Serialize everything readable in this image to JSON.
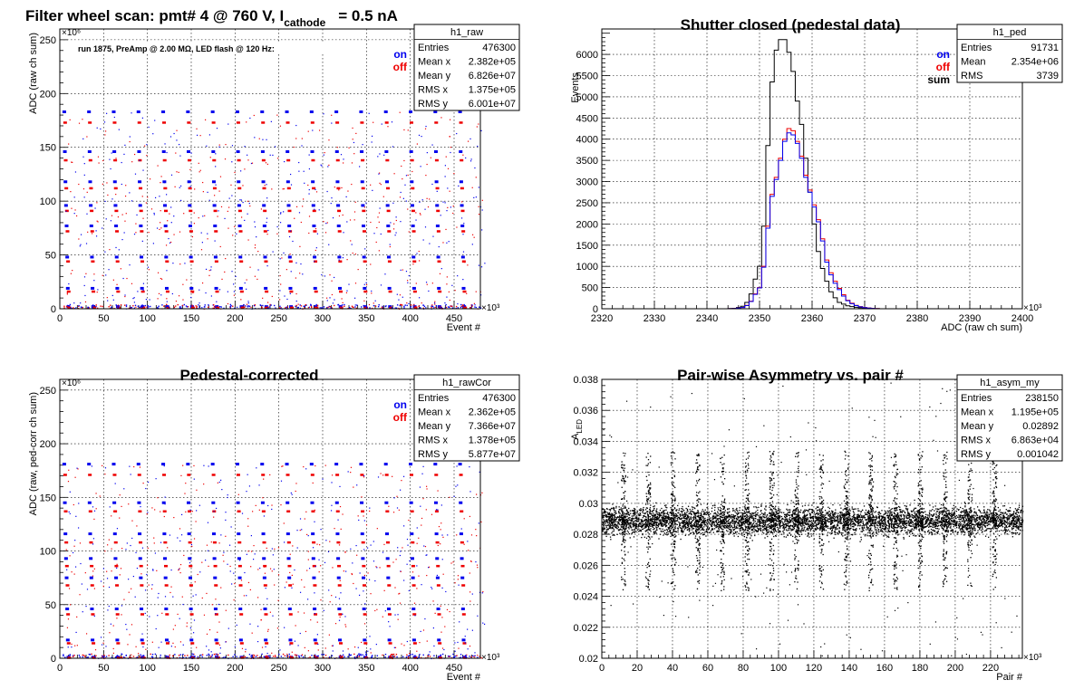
{
  "chart_data": [
    {
      "id": "p1",
      "type": "scatter",
      "title_main": "Filter wheel scan: pmt#   4 @   760 V, I",
      "title_sub": "cathode",
      "title_tail": "= 0.5 nA",
      "annotation": "run 1875, PreAmp @ 2.00 MΩ, LED flash @  120 Hz:",
      "xlabel": "Event #",
      "ylabel": "ADC (raw ch sum)",
      "x_exponent": "×10³",
      "y_exponent": "×10⁶",
      "xlim": [
        0,
        480
      ],
      "ylim": [
        0,
        260
      ],
      "xticks": [
        0,
        50,
        100,
        150,
        200,
        250,
        300,
        350,
        400,
        450
      ],
      "yticks": [
        0,
        50,
        100,
        150,
        200,
        250
      ],
      "grid": true,
      "legend": [
        "on",
        "off"
      ],
      "legend_colors": [
        "#0000ee",
        "#ee0000"
      ],
      "levels_on": [
        183,
        146,
        118,
        96,
        77,
        48,
        19,
        2
      ],
      "levels_off": [
        173,
        138,
        112,
        91,
        72,
        44,
        16,
        1
      ],
      "n_steps": 17,
      "stats": {
        "name": "h1_raw",
        "rows": [
          [
            "Entries",
            "476300"
          ],
          [
            "Mean x",
            "2.382e+05"
          ],
          [
            "Mean y",
            "6.826e+07"
          ],
          [
            "RMS x",
            "1.375e+05"
          ],
          [
            "RMS y",
            "6.001e+07"
          ]
        ]
      }
    },
    {
      "id": "p2",
      "type": "line",
      "title": "Shutter closed (pedestal data)",
      "xlabel": "ADC (raw ch sum)",
      "ylabel": "Events",
      "x_exponent": "×10³",
      "xlim": [
        2320,
        2400
      ],
      "ylim": [
        0,
        6600
      ],
      "xticks": [
        2320,
        2330,
        2340,
        2350,
        2360,
        2370,
        2380,
        2390,
        2400
      ],
      "yticks": [
        0,
        500,
        1000,
        1500,
        2000,
        2500,
        3000,
        3500,
        4000,
        4500,
        5000,
        5500,
        6000
      ],
      "grid": true,
      "legend": [
        "on",
        "off",
        "sum"
      ],
      "legend_colors": [
        "#0000ee",
        "#ee0000",
        "#000000"
      ],
      "series": [
        {
          "name": "sum",
          "color": "#000000",
          "x_start": 2344,
          "bin_width": 0.8,
          "values": [
            5,
            10,
            30,
            60,
            150,
            350,
            700,
            1000,
            1950,
            3850,
            5350,
            6100,
            6350,
            6350,
            6050,
            5600,
            4900,
            4350,
            3550,
            2750,
            2000,
            1350,
            950,
            650,
            400,
            260,
            150,
            110,
            70,
            50,
            35,
            25,
            15,
            10,
            5,
            3
          ]
        },
        {
          "name": "off",
          "color": "#ee0000",
          "x_start": 2344,
          "bin_width": 0.8,
          "values": [
            2,
            5,
            15,
            30,
            80,
            180,
            350,
            500,
            1000,
            1950,
            2700,
            3100,
            3550,
            4000,
            4250,
            4200,
            3950,
            3600,
            3150,
            2800,
            2450,
            2100,
            1650,
            1150,
            850,
            650,
            480,
            330,
            200,
            130,
            80,
            50,
            30,
            18,
            10,
            5
          ]
        },
        {
          "name": "on",
          "color": "#0000ee",
          "x_start": 2344,
          "bin_width": 0.8,
          "values": [
            2,
            5,
            15,
            30,
            75,
            170,
            340,
            490,
            980,
            1900,
            2650,
            3050,
            3500,
            3950,
            4150,
            4100,
            3900,
            3550,
            3100,
            2750,
            2400,
            2050,
            1600,
            1100,
            800,
            600,
            450,
            300,
            190,
            120,
            75,
            45,
            28,
            16,
            9,
            4
          ]
        }
      ],
      "stats": {
        "name": "h1_ped",
        "rows": [
          [
            "Entries",
            "91731"
          ],
          [
            "Mean",
            "2.354e+06"
          ],
          [
            "RMS",
            "3739"
          ]
        ]
      }
    },
    {
      "id": "p3",
      "type": "scatter",
      "title": "Pedestal-corrected",
      "xlabel": "Event #",
      "ylabel": "ADC (raw, ped-corr ch sum)",
      "x_exponent": "×10³",
      "y_exponent": "×10⁶",
      "xlim": [
        0,
        480
      ],
      "ylim": [
        0,
        260
      ],
      "xticks": [
        0,
        50,
        100,
        150,
        200,
        250,
        300,
        350,
        400,
        450
      ],
      "yticks": [
        0,
        50,
        100,
        150,
        200,
        250
      ],
      "grid": true,
      "legend": [
        "on",
        "off"
      ],
      "legend_colors": [
        "#0000ee",
        "#ee0000"
      ],
      "levels_on": [
        181,
        145,
        116,
        93,
        75,
        46,
        17,
        1
      ],
      "levels_off": [
        171,
        137,
        108,
        86,
        68,
        41,
        14,
        0.5
      ],
      "n_steps": 17,
      "stats": {
        "name": "h1_rawCor",
        "rows": [
          [
            "Entries",
            "476300"
          ],
          [
            "Mean x",
            "2.362e+05"
          ],
          [
            "Mean y",
            "7.366e+07"
          ],
          [
            "RMS x",
            "1.378e+05"
          ],
          [
            "RMS y",
            "5.877e+07"
          ]
        ]
      }
    },
    {
      "id": "p4",
      "type": "scatter",
      "title": "Pair-wise Asymmetry vs. pair #",
      "xlabel": "Pair #",
      "ylabel": "A",
      "ylabel_sub": "LED",
      "x_exponent": "×10³",
      "xlim": [
        0,
        238
      ],
      "ylim": [
        0.02,
        0.038
      ],
      "xticks": [
        0,
        20,
        40,
        60,
        80,
        100,
        120,
        140,
        160,
        180,
        200,
        220
      ],
      "yticks": [
        0.02,
        0.022,
        0.024,
        0.026,
        0.028,
        0.03,
        0.032,
        0.034,
        0.036,
        0.038
      ],
      "grid": true,
      "band_center": 0.0289,
      "band_halfwidth": 0.0008,
      "spikes_x": [
        12,
        26,
        40,
        54,
        68,
        82,
        96,
        110,
        124,
        138,
        152,
        166,
        180,
        194,
        208,
        222
      ],
      "stats": {
        "name": "h1_asym_my",
        "rows": [
          [
            "Entries",
            "238150"
          ],
          [
            "Mean x",
            "1.195e+05"
          ],
          [
            "Mean y",
            "0.02892"
          ],
          [
            "RMS x",
            "6.863e+04"
          ],
          [
            "RMS y",
            "0.001042"
          ]
        ]
      }
    }
  ]
}
